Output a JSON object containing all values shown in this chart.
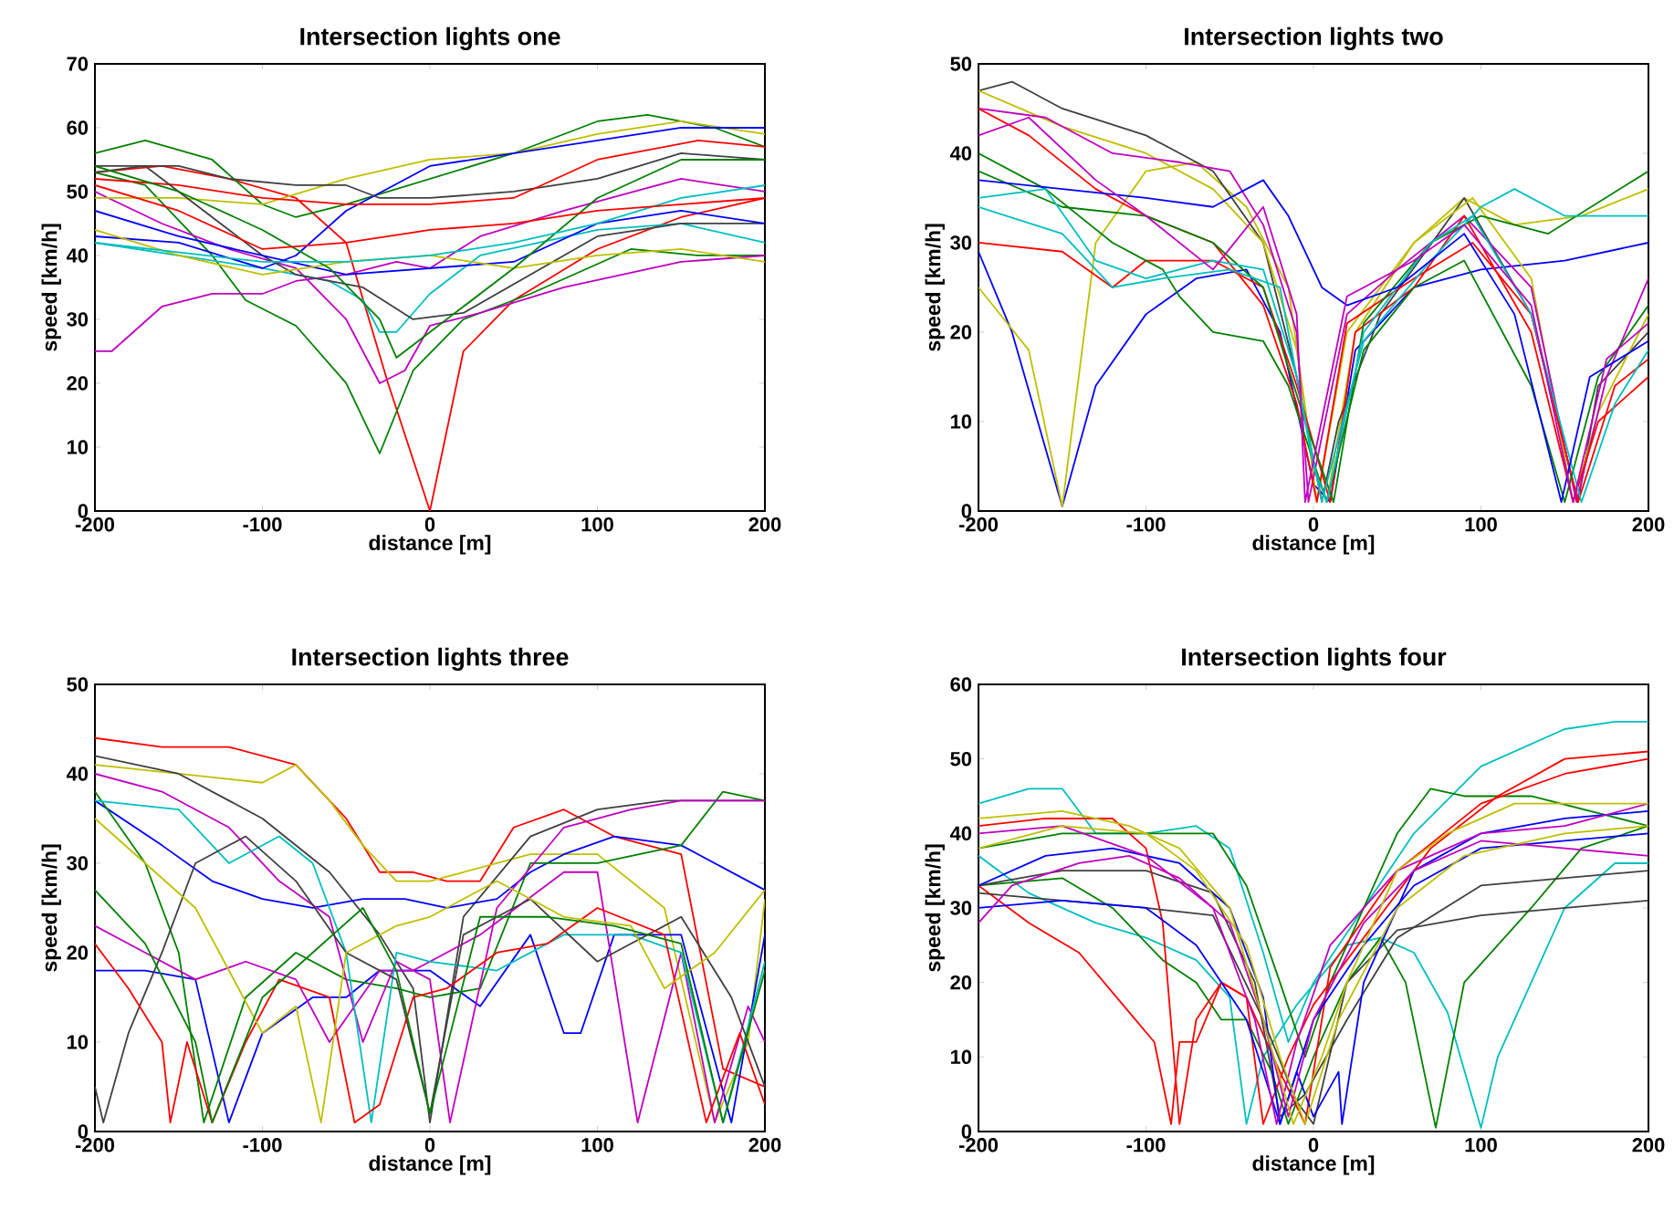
{
  "chart_data": [
    {
      "type": "line",
      "title": "Intersection lights one",
      "xlabel": "distance [m]",
      "ylabel": "speed [km/h]",
      "xlim": [
        -200,
        200
      ],
      "ylim": [
        0,
        70
      ],
      "xticks": [
        -200,
        -100,
        0,
        100,
        200
      ],
      "yticks": [
        0,
        10,
        20,
        30,
        40,
        50,
        60,
        70
      ],
      "series": [
        {
          "color": "#ff0000",
          "x": [
            -200,
            -160,
            -120,
            -80,
            -50,
            -25,
            0,
            20,
            50,
            100,
            150,
            200
          ],
          "values": [
            53,
            54,
            52,
            49,
            42,
            20,
            0,
            25,
            33,
            41,
            46,
            49
          ]
        },
        {
          "color": "#008000",
          "x": [
            -200,
            -170,
            -130,
            -110,
            -80,
            -50,
            -30,
            -10,
            20,
            60,
            120,
            160,
            200
          ],
          "values": [
            53,
            51,
            40,
            33,
            29,
            20,
            9,
            22,
            30,
            34,
            41,
            40,
            40
          ]
        },
        {
          "color": "#bf00bf",
          "x": [
            -200,
            -160,
            -120,
            -80,
            -50,
            -30,
            -15,
            0,
            30,
            80,
            150,
            200
          ],
          "values": [
            50,
            45,
            41,
            38,
            30,
            20,
            22,
            29,
            31,
            35,
            39,
            40
          ]
        },
        {
          "color": "#bf00bf",
          "x": [
            -200,
            -190,
            -160,
            -130,
            -100,
            -80,
            -50,
            -20,
            0,
            30,
            80,
            150,
            200
          ],
          "values": [
            25,
            25,
            32,
            34,
            34,
            36,
            37,
            39,
            38,
            43,
            47,
            52,
            50
          ]
        },
        {
          "color": "#00bfbf",
          "x": [
            -200,
            -150,
            -100,
            -60,
            -40,
            -30,
            -20,
            0,
            30,
            100,
            150,
            200
          ],
          "values": [
            42,
            40,
            38,
            36,
            33,
            28,
            28,
            34,
            40,
            44,
            45,
            42
          ]
        },
        {
          "color": "#008000",
          "x": [
            -200,
            -170,
            -130,
            -100,
            -80,
            -50,
            0,
            50,
            100,
            130,
            170,
            200
          ],
          "values": [
            56,
            58,
            55,
            48,
            46,
            48,
            52,
            56,
            61,
            62,
            60,
            57
          ]
        },
        {
          "color": "#bfbf00",
          "x": [
            -200,
            -150,
            -100,
            -50,
            0,
            50,
            100,
            150,
            200
          ],
          "values": [
            49,
            49,
            48,
            52,
            55,
            56,
            59,
            61,
            59
          ]
        },
        {
          "color": "#0000ff",
          "x": [
            -200,
            -150,
            -100,
            -80,
            -50,
            0,
            50,
            100,
            150,
            200
          ],
          "values": [
            43,
            42,
            38,
            40,
            47,
            54,
            56,
            58,
            60,
            60
          ]
        },
        {
          "color": "#404040",
          "x": [
            -200,
            -150,
            -120,
            -80,
            -50,
            -30,
            0,
            50,
            100,
            150,
            200
          ],
          "values": [
            54,
            54,
            52,
            51,
            51,
            49,
            49,
            50,
            52,
            56,
            55
          ]
        },
        {
          "color": "#ff0000",
          "x": [
            -200,
            -150,
            -100,
            -50,
            0,
            50,
            100,
            160,
            200
          ],
          "values": [
            52,
            51,
            49,
            48,
            48,
            49,
            55,
            58,
            57
          ]
        },
        {
          "color": "#404040",
          "x": [
            -200,
            -170,
            -130,
            -100,
            -80,
            -40,
            -10,
            20,
            60,
            100,
            150,
            200
          ],
          "values": [
            53,
            54,
            46,
            40,
            37,
            35,
            30,
            31,
            37,
            43,
            45,
            45
          ]
        },
        {
          "color": "#0000ff",
          "x": [
            -200,
            -150,
            -100,
            -50,
            0,
            50,
            100,
            150,
            200
          ],
          "values": [
            47,
            43,
            40,
            37,
            38,
            39,
            45,
            47,
            45
          ]
        },
        {
          "color": "#bfbf00",
          "x": [
            -200,
            -150,
            -100,
            -50,
            0,
            50,
            100,
            150,
            200
          ],
          "values": [
            44,
            40,
            37,
            39,
            40,
            38,
            40,
            41,
            39
          ]
        },
        {
          "color": "#008000",
          "x": [
            -200,
            -150,
            -100,
            -60,
            -30,
            -20,
            0,
            50,
            100,
            150,
            200
          ],
          "values": [
            54,
            50,
            44,
            38,
            30,
            24,
            28,
            38,
            49,
            55,
            55
          ]
        },
        {
          "color": "#00bfbf",
          "x": [
            -200,
            -100,
            -50,
            0,
            50,
            100,
            150,
            200
          ],
          "values": [
            42,
            39,
            39,
            40,
            42,
            45,
            49,
            51
          ]
        },
        {
          "color": "#ff0000",
          "x": [
            -200,
            -150,
            -100,
            -50,
            0,
            50,
            100,
            150,
            200
          ],
          "values": [
            51,
            47,
            41,
            42,
            44,
            45,
            47,
            48,
            49
          ]
        }
      ]
    },
    {
      "type": "line",
      "title": "Intersection lights two",
      "xlabel": "distance [m]",
      "ylabel": "speed [km/h]",
      "xlim": [
        -200,
        200
      ],
      "ylim": [
        0,
        50
      ],
      "xticks": [
        -200,
        -100,
        0,
        100,
        200
      ],
      "yticks": [
        0,
        10,
        20,
        30,
        40,
        50
      ],
      "series": [
        {
          "color": "#0000ff",
          "x": [
            -200,
            -180,
            -150,
            -130,
            -100,
            -70,
            -40,
            -20,
            0,
            10,
            25,
            60,
            100,
            150,
            200
          ],
          "values": [
            29,
            20,
            0.5,
            14,
            22,
            26,
            27,
            20,
            3,
            1,
            18,
            25,
            27,
            28,
            30
          ]
        },
        {
          "color": "#bfbf00",
          "x": [
            -200,
            -170,
            -150,
            -130,
            -100,
            -70,
            -40,
            -15,
            0,
            8,
            25,
            60,
            90,
            120,
            160,
            200
          ],
          "values": [
            25,
            18,
            0.5,
            30,
            38,
            39,
            34,
            25,
            5,
            1,
            20,
            30,
            35,
            32,
            33,
            36
          ]
        },
        {
          "color": "#404040",
          "x": [
            -200,
            -180,
            -150,
            -100,
            -60,
            -30,
            -10,
            5,
            15,
            40,
            90,
            130,
            158,
            170,
            200
          ],
          "values": [
            47,
            48,
            45,
            42,
            38,
            30,
            15,
            1,
            10,
            22,
            35,
            22,
            1,
            14,
            20
          ]
        },
        {
          "color": "#bfbf00",
          "x": [
            -200,
            -150,
            -100,
            -60,
            -30,
            -10,
            2,
            20,
            60,
            95,
            130,
            155,
            170,
            200
          ],
          "values": [
            47,
            43,
            40,
            36,
            30,
            18,
            1,
            20,
            30,
            35,
            26,
            1,
            11,
            22
          ]
        },
        {
          "color": "#bf00bf",
          "x": [
            -200,
            -160,
            -120,
            -80,
            -50,
            -30,
            -10,
            -3,
            20,
            50,
            90,
            130,
            157,
            175,
            200
          ],
          "values": [
            45,
            44,
            40,
            39,
            38,
            32,
            20,
            1,
            22,
            27,
            33,
            25,
            1,
            15,
            26
          ]
        },
        {
          "color": "#ff0000",
          "x": [
            -200,
            -170,
            -130,
            -100,
            -60,
            -30,
            -10,
            2,
            20,
            60,
            95,
            130,
            158,
            180,
            200
          ],
          "values": [
            45,
            42,
            36,
            33,
            30,
            23,
            12,
            1,
            21,
            26,
            30,
            22,
            1,
            14,
            17
          ]
        },
        {
          "color": "#ff0000",
          "x": [
            -200,
            -150,
            -120,
            -100,
            -60,
            -30,
            -10,
            10,
            25,
            60,
            90,
            130,
            155,
            170,
            200
          ],
          "values": [
            30,
            29,
            25,
            28,
            28,
            25,
            14,
            1,
            20,
            25,
            33,
            20,
            1,
            10,
            15
          ]
        },
        {
          "color": "#008000",
          "x": [
            -200,
            -160,
            -120,
            -90,
            -80,
            -60,
            -30,
            -15,
            8,
            30,
            60,
            90,
            130,
            150,
            170,
            200
          ],
          "values": [
            40,
            36,
            30,
            27,
            24,
            20,
            19,
            14,
            1,
            18,
            25,
            28,
            14,
            1,
            15,
            23
          ]
        },
        {
          "color": "#008000",
          "x": [
            -200,
            -150,
            -100,
            -60,
            -30,
            -5,
            12,
            30,
            70,
            100,
            140,
            200
          ],
          "values": [
            38,
            34,
            33,
            30,
            25,
            10,
            1,
            21,
            30,
            33,
            31,
            38
          ]
        },
        {
          "color": "#00bfbf",
          "x": [
            -200,
            -160,
            -130,
            -100,
            -60,
            -30,
            -10,
            5,
            30,
            70,
            100,
            120,
            150,
            200
          ],
          "values": [
            35,
            36,
            28,
            26,
            28,
            27,
            15,
            1,
            19,
            28,
            34,
            36,
            33,
            33
          ]
        },
        {
          "color": "#00bfbf",
          "x": [
            -200,
            -150,
            -120,
            -90,
            -50,
            -20,
            0,
            8,
            30,
            70,
            95,
            130,
            160,
            180,
            200
          ],
          "values": [
            34,
            31,
            25,
            26,
            27,
            25,
            5,
            1,
            20,
            30,
            33,
            22,
            1,
            12,
            18
          ]
        },
        {
          "color": "#0000ff",
          "x": [
            -200,
            -150,
            -100,
            -60,
            -30,
            -15,
            5,
            20,
            50,
            90,
            120,
            148,
            165,
            200
          ],
          "values": [
            37,
            36,
            35,
            34,
            37,
            33,
            25,
            23,
            25,
            31,
            22,
            1,
            15,
            19
          ]
        },
        {
          "color": "#bf00bf",
          "x": [
            -200,
            -170,
            -130,
            -100,
            -60,
            -30,
            -10,
            -5,
            20,
            60,
            90,
            130,
            155,
            175,
            200
          ],
          "values": [
            42,
            44,
            37,
            33,
            27,
            34,
            22,
            1,
            24,
            28,
            32,
            23,
            1,
            17,
            21
          ]
        }
      ]
    },
    {
      "type": "line",
      "title": "Intersection lights three",
      "xlabel": "distance [m]",
      "ylabel": "speed [km/h]",
      "xlim": [
        -200,
        200
      ],
      "ylim": [
        0,
        50
      ],
      "xticks": [
        -200,
        -100,
        0,
        100,
        200
      ],
      "yticks": [
        0,
        10,
        20,
        30,
        40,
        50
      ],
      "series": [
        {
          "color": "#ff0000",
          "x": [
            -200,
            -160,
            -120,
            -80,
            -50,
            -30,
            -10,
            10,
            30,
            50,
            80,
            110,
            150,
            175,
            200
          ],
          "values": [
            44,
            43,
            43,
            41,
            35,
            29,
            29,
            28,
            28,
            34,
            36,
            33,
            31,
            7,
            5
          ]
        },
        {
          "color": "#bfbf00",
          "x": [
            -200,
            -150,
            -100,
            -80,
            -60,
            -40,
            -20,
            0,
            20,
            60,
            100,
            140,
            170,
            190,
            200
          ],
          "values": [
            41,
            40,
            39,
            41,
            37,
            32,
            28,
            28,
            29,
            31,
            31,
            25,
            1,
            10,
            26
          ]
        },
        {
          "color": "#404040",
          "x": [
            -200,
            -150,
            -100,
            -60,
            -30,
            -10,
            0,
            20,
            60,
            100,
            140,
            200
          ],
          "values": [
            42,
            40,
            35,
            29,
            22,
            16,
            1,
            24,
            33,
            36,
            37,
            37
          ]
        },
        {
          "color": "#0000ff",
          "x": [
            -200,
            -160,
            -130,
            -100,
            -70,
            -40,
            -15,
            10,
            40,
            60,
            80,
            110,
            150,
            200
          ],
          "values": [
            37,
            32,
            28,
            26,
            25,
            26,
            26,
            25,
            26,
            29,
            31,
            33,
            32,
            27
          ]
        },
        {
          "color": "#0000ff",
          "x": [
            -200,
            -170,
            -140,
            -120,
            -100,
            -70,
            -50,
            -30,
            0,
            30,
            60,
            80,
            90,
            110,
            150,
            180,
            200
          ],
          "values": [
            18,
            18,
            17,
            1,
            11,
            15,
            15,
            18,
            18,
            14,
            22,
            11,
            11,
            22,
            22,
            1,
            22
          ]
        },
        {
          "color": "#008000",
          "x": [
            -200,
            -170,
            -150,
            -135,
            -110,
            -80,
            -50,
            -20,
            0,
            30,
            60,
            100,
            150,
            175,
            200
          ],
          "values": [
            38,
            30,
            20,
            1,
            15,
            20,
            17,
            16,
            15,
            16,
            30,
            30,
            32,
            38,
            37
          ]
        },
        {
          "color": "#bf00bf",
          "x": [
            -200,
            -160,
            -120,
            -90,
            -60,
            -40,
            -20,
            0,
            12,
            40,
            80,
            120,
            150,
            200
          ],
          "values": [
            40,
            38,
            34,
            28,
            24,
            10,
            19,
            17,
            1,
            25,
            34,
            36,
            37,
            37
          ]
        },
        {
          "color": "#bf00bf",
          "x": [
            -200,
            -170,
            -140,
            -110,
            -80,
            -60,
            -30,
            -10,
            0,
            30,
            80,
            100,
            124,
            150,
            170,
            190,
            200
          ],
          "values": [
            23,
            20,
            17,
            19,
            17,
            10,
            18,
            18,
            19,
            22,
            29,
            29,
            1,
            20,
            1,
            14,
            10
          ]
        },
        {
          "color": "#00bfbf",
          "x": [
            -200,
            -150,
            -120,
            -90,
            -70,
            -50,
            -35,
            -20,
            0,
            40,
            80,
            120,
            150,
            175,
            200
          ],
          "values": [
            37,
            36,
            30,
            33,
            30,
            20,
            1,
            20,
            19,
            18,
            22,
            22,
            20,
            1,
            19
          ]
        },
        {
          "color": "#404040",
          "x": [
            -200,
            -195,
            -180,
            -160,
            -140,
            -110,
            -80,
            -50,
            -20,
            0,
            20,
            60,
            100,
            150,
            180,
            200
          ],
          "values": [
            5,
            1,
            11,
            20,
            30,
            33,
            28,
            20,
            17,
            2,
            22,
            26,
            19,
            24,
            15,
            5
          ]
        },
        {
          "color": "#ff0000",
          "x": [
            -200,
            -180,
            -160,
            -155,
            -145,
            -130,
            -110,
            -90,
            -60,
            -45,
            -30,
            -10,
            10,
            40,
            70,
            100,
            140,
            165,
            185,
            200
          ],
          "values": [
            21,
            16,
            10,
            1,
            10,
            1,
            10,
            17,
            15,
            1,
            3,
            15,
            16,
            20,
            21,
            25,
            22,
            1,
            11,
            3
          ]
        },
        {
          "color": "#bfbf00",
          "x": [
            -200,
            -170,
            -140,
            -100,
            -80,
            -65,
            -50,
            -20,
            0,
            40,
            80,
            120,
            140,
            170,
            200
          ],
          "values": [
            35,
            30,
            25,
            11,
            14,
            1,
            20,
            23,
            24,
            28,
            24,
            23,
            16,
            20,
            27
          ]
        },
        {
          "color": "#008000",
          "x": [
            -200,
            -170,
            -140,
            -130,
            -100,
            -70,
            -40,
            -20,
            0,
            30,
            70,
            110,
            150,
            175,
            200
          ],
          "values": [
            27,
            21,
            10,
            1,
            15,
            20,
            25,
            18,
            2,
            24,
            24,
            23,
            21,
            1,
            18
          ]
        }
      ]
    },
    {
      "type": "line",
      "title": "Intersection lights four",
      "xlabel": "distance [m]",
      "ylabel": "speed [km/h]",
      "xlim": [
        -200,
        200
      ],
      "ylim": [
        0,
        60
      ],
      "xticks": [
        -200,
        -100,
        0,
        100,
        200
      ],
      "yticks": [
        0,
        10,
        20,
        30,
        40,
        50,
        60
      ],
      "series": [
        {
          "color": "#00bfbf",
          "x": [
            -200,
            -170,
            -150,
            -130,
            -100,
            -70,
            -50,
            -30,
            -15,
            0,
            30,
            60,
            100,
            150,
            180,
            200
          ],
          "values": [
            44,
            46,
            46,
            40,
            40,
            41,
            38,
            24,
            12,
            20,
            30,
            40,
            49,
            54,
            55,
            55
          ]
        },
        {
          "color": "#00bfbf",
          "x": [
            -200,
            -170,
            -130,
            -100,
            -70,
            -50,
            -40,
            -30,
            -10,
            20,
            40,
            60,
            80,
            100,
            110,
            150,
            180,
            200
          ],
          "values": [
            37,
            32,
            28,
            26,
            23,
            18,
            1,
            10,
            17,
            25,
            26,
            24,
            16,
            0.5,
            10,
            30,
            36,
            36
          ]
        },
        {
          "color": "#008000",
          "x": [
            -200,
            -150,
            -100,
            -60,
            -40,
            -20,
            -5,
            10,
            30,
            50,
            70,
            90,
            130,
            200
          ],
          "values": [
            38,
            40,
            40,
            40,
            33,
            20,
            10,
            20,
            30,
            40,
            46,
            45,
            45,
            41
          ]
        },
        {
          "color": "#008000",
          "x": [
            -200,
            -150,
            -120,
            -90,
            -70,
            -55,
            -40,
            -25,
            -15,
            0,
            20,
            40,
            55,
            73,
            90,
            130,
            160,
            200
          ],
          "values": [
            33,
            34,
            30,
            23,
            20,
            15,
            15,
            8,
            1,
            10,
            20,
            26,
            20,
            0.5,
            20,
            30,
            38,
            41
          ]
        },
        {
          "color": "#ff0000",
          "x": [
            -200,
            -170,
            -140,
            -110,
            -95,
            -85,
            -80,
            -70,
            -55,
            -40,
            -30,
            -15,
            0,
            30,
            70,
            110,
            150,
            200
          ],
          "values": [
            33,
            28,
            24,
            16,
            12,
            1,
            12,
            12,
            20,
            18,
            1,
            10,
            17,
            26,
            38,
            45,
            50,
            51
          ]
        },
        {
          "color": "#ff0000",
          "x": [
            -200,
            -160,
            -120,
            -100,
            -90,
            -80,
            -70,
            -55,
            -40,
            -20,
            -5,
            10,
            50,
            100,
            150,
            200
          ],
          "values": [
            41,
            42,
            42,
            38,
            28,
            1,
            15,
            20,
            18,
            8,
            1,
            22,
            35,
            44,
            48,
            50
          ]
        },
        {
          "color": "#404040",
          "x": [
            -200,
            -150,
            -100,
            -60,
            -30,
            -10,
            0,
            20,
            50,
            100,
            150,
            200
          ],
          "values": [
            32,
            31,
            30,
            29,
            15,
            4,
            1,
            20,
            27,
            29,
            30,
            31
          ]
        },
        {
          "color": "#404040",
          "x": [
            -200,
            -150,
            -100,
            -60,
            -35,
            -20,
            -5,
            20,
            50,
            100,
            150,
            200
          ],
          "values": [
            33,
            35,
            35,
            32,
            20,
            2,
            5,
            15,
            26,
            33,
            34,
            35
          ]
        },
        {
          "color": "#0000ff",
          "x": [
            -200,
            -160,
            -120,
            -80,
            -50,
            -30,
            -20,
            -10,
            0,
            15,
            17,
            30,
            60,
            100,
            150,
            200
          ],
          "values": [
            33,
            37,
            38,
            36,
            30,
            18,
            1,
            8,
            2,
            8,
            1,
            20,
            35,
            40,
            42,
            43
          ]
        },
        {
          "color": "#0000ff",
          "x": [
            -200,
            -150,
            -100,
            -70,
            -40,
            -20,
            0,
            30,
            60,
            100,
            150,
            200
          ],
          "values": [
            30,
            31,
            30,
            25,
            15,
            1,
            15,
            25,
            33,
            38,
            39,
            40
          ]
        },
        {
          "color": "#bf00bf",
          "x": [
            -200,
            -180,
            -140,
            -110,
            -80,
            -50,
            -30,
            -15,
            0,
            30,
            60,
            100,
            150,
            200
          ],
          "values": [
            28,
            33,
            36,
            37,
            34,
            28,
            15,
            2,
            15,
            28,
            35,
            39,
            38,
            37
          ]
        },
        {
          "color": "#bf00bf",
          "x": [
            -200,
            -150,
            -100,
            -60,
            -35,
            -22,
            -10,
            10,
            50,
            100,
            150,
            200
          ],
          "values": [
            40,
            41,
            37,
            30,
            15,
            1,
            12,
            25,
            35,
            40,
            41,
            44
          ]
        },
        {
          "color": "#bfbf00",
          "x": [
            -200,
            -150,
            -110,
            -80,
            -50,
            -30,
            -12,
            5,
            20,
            50,
            80,
            120,
            200
          ],
          "values": [
            42,
            43,
            41,
            38,
            30,
            15,
            1,
            10,
            20,
            35,
            40,
            44,
            44
          ]
        },
        {
          "color": "#bfbf00",
          "x": [
            -200,
            -150,
            -100,
            -70,
            -40,
            -20,
            -5,
            15,
            50,
            90,
            150,
            200
          ],
          "values": [
            38,
            41,
            40,
            35,
            25,
            10,
            1,
            15,
            30,
            37,
            40,
            41
          ]
        }
      ]
    }
  ]
}
